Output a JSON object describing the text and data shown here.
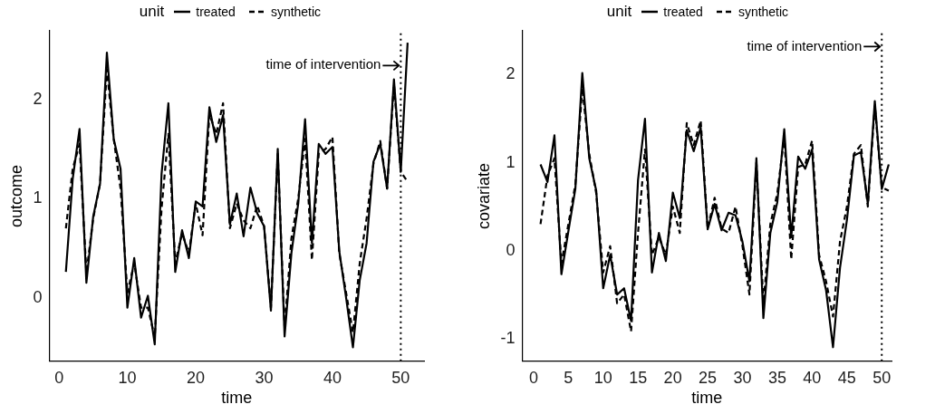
{
  "chart_data": [
    {
      "type": "line",
      "xlabel": "time",
      "ylabel": "outcome",
      "legend_title": "unit",
      "legend": "top",
      "grid": false,
      "marker": "none",
      "x": [
        1,
        2,
        3,
        4,
        5,
        6,
        7,
        8,
        9,
        10,
        11,
        12,
        13,
        14,
        15,
        16,
        17,
        18,
        19,
        20,
        21,
        22,
        23,
        24,
        25,
        26,
        27,
        28,
        29,
        30,
        31,
        32,
        33,
        34,
        35,
        36,
        37,
        38,
        39,
        40,
        41,
        42,
        43,
        44,
        45,
        46,
        47,
        48,
        49,
        50,
        51
      ],
      "xlim": [
        -1.4,
        53.4
      ],
      "xticks": [
        0,
        10,
        20,
        30,
        40,
        50
      ],
      "ylim": [
        -0.64,
        2.69
      ],
      "yticks": [
        0,
        1,
        2
      ],
      "series": [
        {
          "name": "treated",
          "color": "#000000",
          "line_style": "solid",
          "values": [
            0.26,
            1.2,
            1.7,
            0.15,
            0.82,
            1.15,
            2.47,
            1.6,
            1.3,
            -0.1,
            0.4,
            -0.2,
            0.02,
            -0.47,
            1.25,
            1.96,
            0.26,
            0.68,
            0.4,
            0.97,
            0.92,
            1.92,
            1.57,
            1.84,
            0.74,
            1.05,
            0.62,
            1.11,
            0.85,
            0.72,
            -0.13,
            1.5,
            -0.39,
            0.45,
            0.95,
            1.8,
            0.55,
            1.55,
            1.45,
            1.52,
            0.47,
            0.0,
            -0.5,
            0.18,
            0.55,
            1.37,
            1.55,
            1.1,
            2.2,
            1.27,
            2.57
          ]
        },
        {
          "name": "synthetic",
          "color": "#000000",
          "line_style": "dashed",
          "values": [
            0.7,
            1.3,
            1.55,
            0.25,
            0.8,
            1.15,
            2.3,
            1.6,
            1.1,
            0.05,
            0.35,
            -0.1,
            -0.1,
            -0.4,
            0.9,
            1.65,
            0.35,
            0.65,
            0.45,
            0.95,
            0.63,
            1.85,
            1.65,
            1.96,
            0.7,
            0.95,
            0.78,
            0.7,
            0.93,
            0.72,
            -0.1,
            1.45,
            -0.3,
            0.6,
            1.0,
            1.6,
            0.38,
            1.45,
            1.5,
            1.62,
            0.45,
            0.05,
            -0.35,
            0.35,
            0.8,
            1.35,
            1.58,
            1.1,
            2.15,
            1.27,
            1.17
          ]
        }
      ],
      "ref_lines": [
        {
          "axis": "x",
          "value": 50,
          "line_style": "dotted",
          "color": "#000000"
        }
      ],
      "annotations": [
        {
          "text": "time of intervention",
          "x": 50,
          "y": 2.34
        }
      ]
    },
    {
      "type": "line",
      "xlabel": "time",
      "ylabel": "covariate",
      "legend_title": "unit",
      "legend": "top",
      "grid": false,
      "marker": "none",
      "x": [
        1,
        2,
        3,
        4,
        5,
        6,
        7,
        8,
        9,
        10,
        11,
        12,
        13,
        14,
        15,
        16,
        17,
        18,
        19,
        20,
        21,
        22,
        23,
        24,
        25,
        26,
        27,
        28,
        29,
        30,
        31,
        32,
        33,
        34,
        35,
        36,
        37,
        38,
        39,
        40,
        41,
        42,
        43,
        44,
        45,
        46,
        47,
        48,
        49,
        50,
        51
      ],
      "xlim": [
        -1.6,
        51.4
      ],
      "xticks": [
        0,
        5,
        10,
        15,
        20,
        25,
        30,
        35,
        40,
        45,
        50
      ],
      "ylim": [
        -1.26,
        2.5
      ],
      "yticks": [
        -1,
        0,
        1,
        2
      ],
      "series": [
        {
          "name": "treated",
          "color": "#000000",
          "line_style": "solid",
          "values": [
            0.98,
            0.78,
            1.31,
            -0.27,
            0.22,
            0.7,
            2.02,
            1.05,
            0.68,
            -0.43,
            -0.05,
            -0.5,
            -0.43,
            -0.8,
            0.8,
            1.5,
            -0.25,
            0.2,
            -0.12,
            0.66,
            0.37,
            1.37,
            1.13,
            1.4,
            0.24,
            0.53,
            0.23,
            0.43,
            0.4,
            0.1,
            -0.35,
            1.05,
            -0.77,
            0.2,
            0.55,
            1.38,
            0.15,
            1.07,
            0.93,
            1.15,
            -0.1,
            -0.45,
            -1.1,
            -0.2,
            0.35,
            1.08,
            1.12,
            0.53,
            1.7,
            0.7,
            0.98
          ]
        },
        {
          "name": "synthetic",
          "color": "#000000",
          "line_style": "dashed",
          "values": [
            0.3,
            0.85,
            1.05,
            -0.15,
            0.3,
            0.75,
            1.85,
            1.1,
            0.65,
            -0.25,
            0.05,
            -0.6,
            -0.5,
            -0.92,
            0.2,
            1.15,
            -0.05,
            0.15,
            -0.05,
            0.5,
            0.2,
            1.45,
            1.2,
            1.48,
            0.25,
            0.6,
            0.25,
            0.2,
            0.5,
            0.05,
            -0.5,
            1.0,
            -0.6,
            0.3,
            0.65,
            1.3,
            -0.1,
            0.95,
            0.98,
            1.25,
            -0.05,
            -0.35,
            -0.75,
            0.1,
            0.5,
            1.1,
            1.2,
            0.5,
            1.65,
            0.72,
            0.68
          ]
        }
      ],
      "ref_lines": [
        {
          "axis": "x",
          "value": 50,
          "line_style": "dotted",
          "color": "#000000"
        }
      ],
      "annotations": [
        {
          "text": "time of intervention",
          "x": 50,
          "y": 2.32
        }
      ]
    }
  ]
}
